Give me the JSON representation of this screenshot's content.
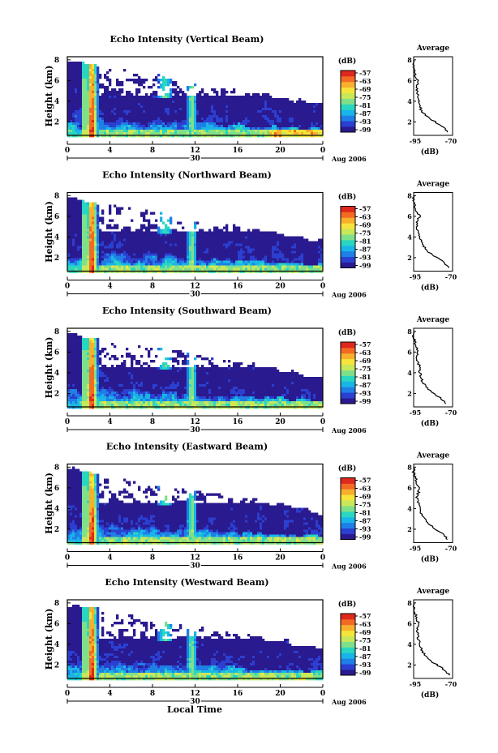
{
  "figure": {
    "xlabel": "Local Time",
    "time_axis_date_label": "30",
    "time_axis_month_label": "Aug 2006",
    "colorbar_unit": "(dB)",
    "colorbar_ticks": [
      "-57",
      "-63",
      "-69",
      "-75",
      "-81",
      "-87",
      "-93",
      "-99"
    ],
    "colorscale": [
      "#2a1a8f",
      "#2b3fd0",
      "#1f7fe6",
      "#19b5e8",
      "#29d6c0",
      "#7fe08a",
      "#c8e85a",
      "#f6e43a",
      "#f8b02c",
      "#f36a24",
      "#e0281c"
    ],
    "avg_title": "Average",
    "avg_xlabel": "(dB)"
  },
  "chart_data": [
    {
      "type": "heatmap",
      "title": "Echo Intensity (Vertical Beam)",
      "ylabel": "Height (km)",
      "x_ticks": [
        "0",
        "4",
        "8",
        "12",
        "16",
        "20",
        "0"
      ],
      "y_ticks": [
        "2",
        "4",
        "6",
        "8"
      ],
      "ylim": [
        0.7,
        8.3
      ],
      "x_range_hours": [
        0,
        24
      ],
      "features": {
        "boundary_layer_top_km": [
          2.6,
          2.4,
          2.2,
          2.1,
          2.0,
          2.0
        ],
        "plume_columns_hours": [
          1.9,
          2.4,
          9.0,
          11.8
        ],
        "cloud_top_km_decay": [
          8.2,
          6.5,
          5.5,
          4.8,
          4.2,
          3.9
        ]
      },
      "profile": {
        "title": "Average",
        "xticks": [
          "-95",
          "-70"
        ],
        "yticks": [
          "2",
          "4",
          "6",
          "8"
        ],
        "xlim": [
          -95,
          -70
        ],
        "height_km": [
          1.0,
          1.5,
          2.0,
          2.5,
          3.0,
          3.5,
          4.0,
          4.5,
          5.0,
          5.5,
          6.0,
          6.5,
          7.0,
          7.5,
          8.0
        ],
        "dB": [
          -73,
          -76,
          -81,
          -86,
          -90,
          -91,
          -92,
          -92,
          -93,
          -93,
          -92,
          -94,
          -94,
          -95,
          -95
        ]
      }
    },
    {
      "type": "heatmap",
      "title": "Echo Intensity (Northward Beam)",
      "ylabel": "Height (km)",
      "x_ticks": [
        "0",
        "4",
        "8",
        "12",
        "16",
        "20",
        "0"
      ],
      "y_ticks": [
        "2",
        "4",
        "6",
        "8"
      ],
      "ylim": [
        0.7,
        8.3
      ],
      "x_range_hours": [
        0,
        24
      ],
      "profile": {
        "title": "Average",
        "xticks": [
          "-95",
          "-70"
        ],
        "yticks": [
          "2",
          "4",
          "6",
          "8"
        ],
        "xlim": [
          -95,
          -70
        ],
        "height_km": [
          1.0,
          1.5,
          2.0,
          2.5,
          3.0,
          3.5,
          4.0,
          4.5,
          5.0,
          5.5,
          6.0,
          6.5,
          7.0,
          7.5,
          8.0
        ],
        "dB": [
          -72,
          -75,
          -80,
          -85,
          -88,
          -90,
          -91,
          -92,
          -93,
          -93,
          -91,
          -93,
          -94,
          -95,
          -95
        ]
      }
    },
    {
      "type": "heatmap",
      "title": "Echo Intensity (Southward Beam)",
      "ylabel": "Height (km)",
      "x_ticks": [
        "0",
        "4",
        "8",
        "12",
        "16",
        "20",
        "0"
      ],
      "y_ticks": [
        "2",
        "4",
        "6",
        "8"
      ],
      "ylim": [
        0.7,
        8.3
      ],
      "x_range_hours": [
        0,
        24
      ],
      "profile": {
        "title": "Average",
        "xticks": [
          "-95",
          "-70"
        ],
        "yticks": [
          "2",
          "4",
          "6",
          "8"
        ],
        "xlim": [
          -95,
          -70
        ],
        "height_km": [
          1.0,
          1.5,
          2.0,
          2.5,
          3.0,
          3.5,
          4.0,
          4.5,
          5.0,
          5.5,
          6.0,
          6.5,
          7.0,
          7.5,
          8.0
        ],
        "dB": [
          -74,
          -77,
          -82,
          -86,
          -89,
          -90,
          -91,
          -91,
          -92,
          -93,
          -92,
          -93,
          -94,
          -95,
          -95
        ]
      }
    },
    {
      "type": "heatmap",
      "title": "Echo Intensity (Eastward Beam)",
      "ylabel": "Height (km)",
      "x_ticks": [
        "0",
        "4",
        "8",
        "12",
        "16",
        "20",
        "0"
      ],
      "y_ticks": [
        "2",
        "4",
        "6",
        "8"
      ],
      "ylim": [
        0.7,
        8.3
      ],
      "x_range_hours": [
        0,
        24
      ],
      "profile": {
        "title": "Average",
        "xticks": [
          "-95",
          "-70"
        ],
        "yticks": [
          "2",
          "4",
          "6",
          "8"
        ],
        "xlim": [
          -95,
          -70
        ],
        "height_km": [
          1.0,
          1.5,
          2.0,
          2.5,
          3.0,
          3.5,
          4.0,
          4.5,
          5.0,
          5.5,
          6.0,
          6.5,
          7.0,
          7.5,
          8.0
        ],
        "dB": [
          -73,
          -76,
          -81,
          -85,
          -88,
          -90,
          -91,
          -92,
          -93,
          -92,
          -91,
          -93,
          -94,
          -95,
          -95
        ]
      }
    },
    {
      "type": "heatmap",
      "title": "Echo Intensity (Westward Beam)",
      "ylabel": "Height (km)",
      "x_ticks": [
        "0",
        "4",
        "8",
        "12",
        "16",
        "20",
        "0"
      ],
      "y_ticks": [
        "2",
        "4",
        "6",
        "8"
      ],
      "ylim": [
        0.7,
        8.3
      ],
      "x_range_hours": [
        0,
        24
      ],
      "profile": {
        "title": "Average",
        "xticks": [
          "-95",
          "-70"
        ],
        "yticks": [
          "2",
          "4",
          "6",
          "8"
        ],
        "xlim": [
          -95,
          -70
        ],
        "height_km": [
          1.0,
          1.5,
          2.0,
          2.5,
          3.0,
          3.5,
          4.0,
          4.5,
          5.0,
          5.5,
          6.0,
          6.5,
          7.0,
          7.5,
          8.0
        ],
        "dB": [
          -72,
          -75,
          -80,
          -85,
          -88,
          -90,
          -91,
          -92,
          -92,
          -93,
          -92,
          -93,
          -94,
          -95,
          -95
        ]
      }
    }
  ]
}
